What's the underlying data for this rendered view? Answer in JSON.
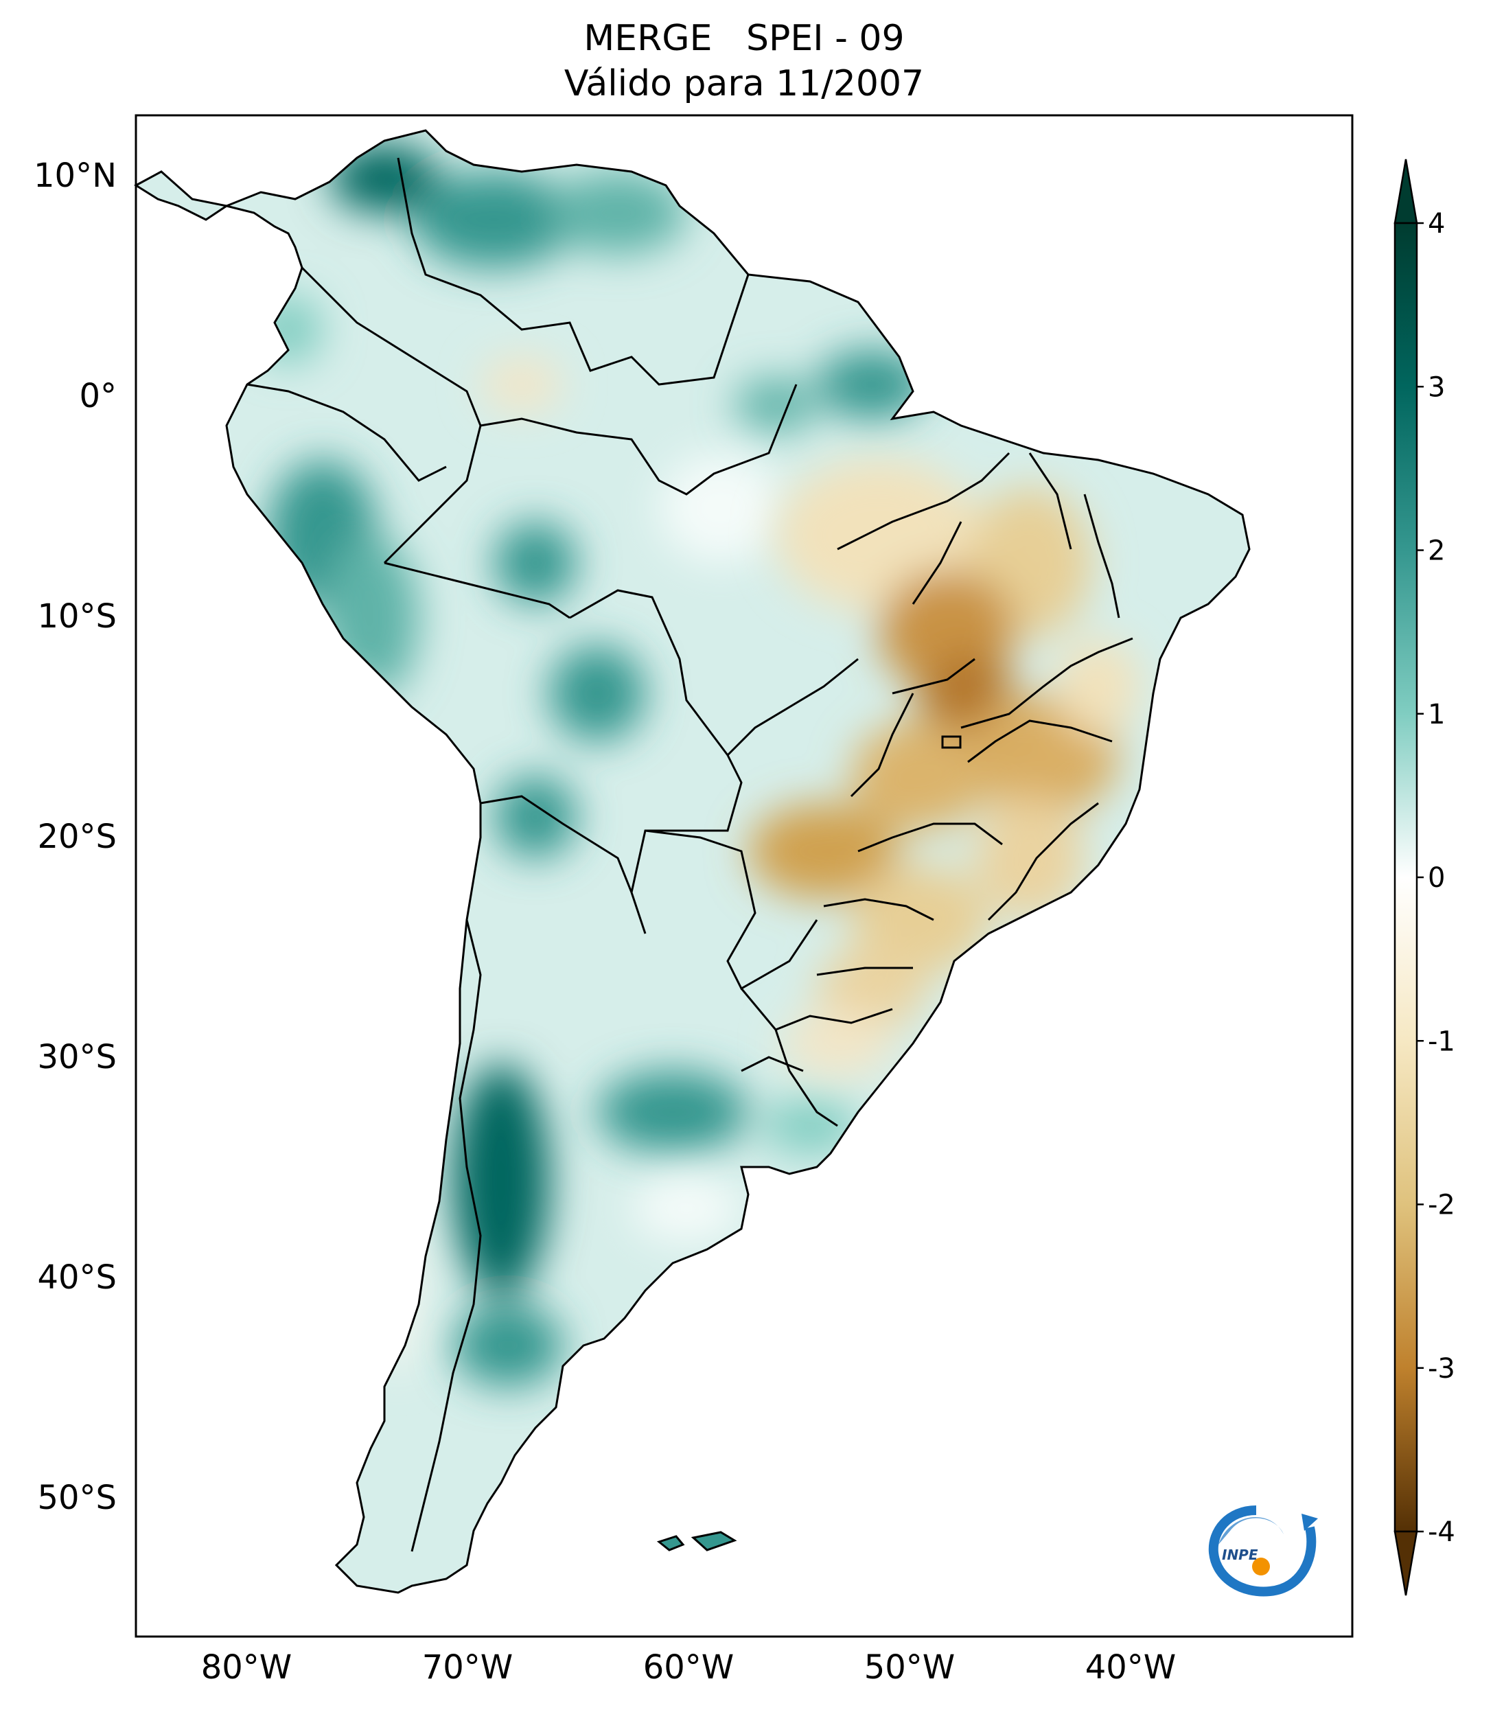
{
  "title": {
    "line1": "MERGE   SPEI - 09",
    "line2": "Válido para 11/2007"
  },
  "map": {
    "lat_labels": [
      "10°N",
      "0°",
      "10°S",
      "20°S",
      "30°S",
      "40°S",
      "50°S"
    ],
    "lat_values": [
      10,
      0,
      -10,
      -20,
      -30,
      -40,
      -50
    ],
    "lon_labels": [
      "80°W",
      "70°W",
      "60°W",
      "50°W",
      "40°W"
    ],
    "lon_values": [
      -80,
      -70,
      -60,
      -50,
      -40
    ],
    "extent": {
      "lon_min": -85,
      "lon_max": -30,
      "lat_min": -56,
      "lat_max": 13
    },
    "dominant_pattern": {
      "wet": "northern Andes, Venezuela, western Amazon, Bolivia, central-west Argentina, Patagonia",
      "dry": "central and eastern Brazil, Paraguay, southern Brazil"
    }
  },
  "colorbar": {
    "ticks": [
      4,
      3,
      2,
      1,
      0,
      -1,
      -2,
      -3,
      -4
    ],
    "tick_labels": [
      "4",
      "3",
      "2",
      "1",
      "0",
      "-1",
      "-2",
      "-3",
      "-4"
    ],
    "range": [
      -4,
      4
    ],
    "extend": "both",
    "colors": {
      "max": "#003c30",
      "wet_strong": "#01665e",
      "wet_mid": "#35978f",
      "wet_light": "#80cdc1",
      "wet_pale": "#c7eae5",
      "neutral": "#ffffff",
      "dry_pale": "#f6e8c3",
      "dry_light": "#dfc27d",
      "dry_mid": "#bf812d",
      "dry_strong": "#8c510a",
      "min": "#543005"
    }
  },
  "logo": {
    "text": "INPE",
    "arc_color": "#1f77c4",
    "dot_color": "#f39200"
  }
}
